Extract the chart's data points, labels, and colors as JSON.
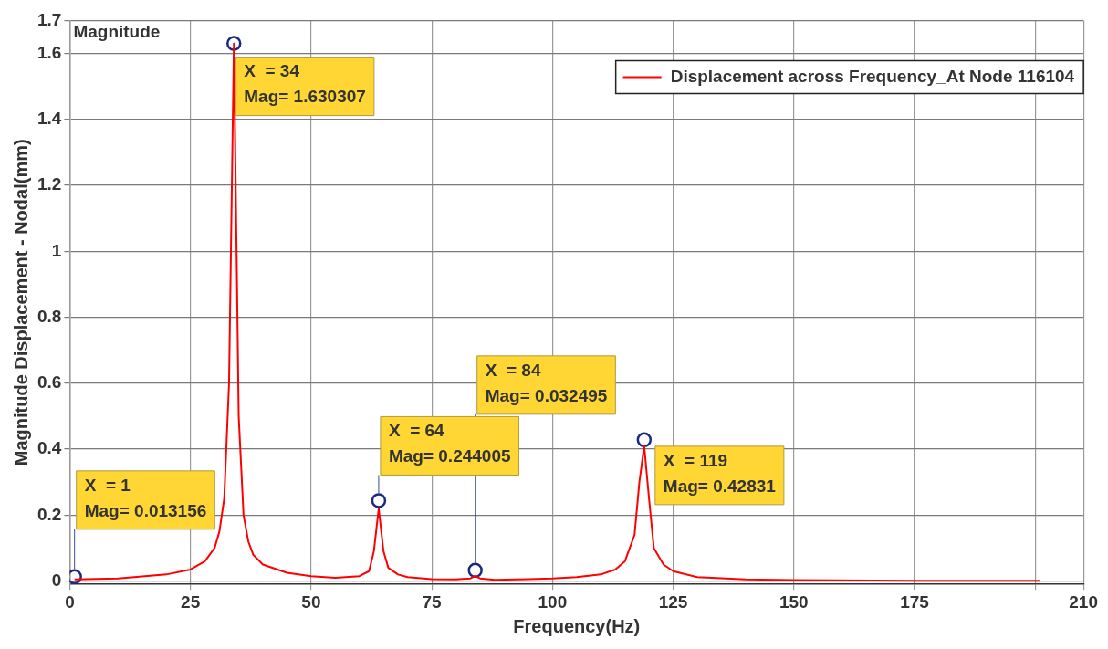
{
  "chart_data": {
    "type": "line",
    "title": "Magnitude",
    "xlabel": "Frequency(Hz)",
    "ylabel": "Magnitude Displacement - Nodal(mm)",
    "xlim": [
      0,
      210
    ],
    "xticks": [
      0,
      25,
      50,
      75,
      100,
      125,
      150,
      175,
      {
        "value": 200,
        "label": null
      },
      210
    ],
    "ylim": [
      -0.01,
      1.7
    ],
    "yticks": [
      0,
      0.2,
      0.4,
      0.6,
      0.8,
      1,
      1.2,
      1.4,
      1.6,
      1.7
    ],
    "grid": true,
    "legend": "top right",
    "series": [
      {
        "name": "Displacement across Frequency_At Node 116104",
        "type": "line",
        "color": "#ff0000",
        "marker": "none",
        "x": [
          1,
          10,
          20,
          25,
          28,
          30,
          31,
          32,
          33,
          34,
          35,
          36,
          37,
          38,
          40,
          45,
          50,
          55,
          60,
          62,
          63,
          64,
          65,
          66,
          68,
          70,
          75,
          80,
          83,
          84,
          85,
          88,
          95,
          100,
          105,
          110,
          113,
          115,
          117,
          118,
          119,
          120,
          121,
          123,
          125,
          130,
          140,
          150,
          175,
          201
        ],
        "values": [
          0.005,
          0.008,
          0.02,
          0.035,
          0.06,
          0.1,
          0.15,
          0.25,
          0.6,
          1.63,
          0.5,
          0.2,
          0.12,
          0.08,
          0.05,
          0.025,
          0.015,
          0.01,
          0.015,
          0.03,
          0.09,
          0.22,
          0.09,
          0.04,
          0.02,
          0.012,
          0.006,
          0.005,
          0.008,
          0.015,
          0.008,
          0.004,
          0.006,
          0.008,
          0.012,
          0.02,
          0.035,
          0.06,
          0.14,
          0.3,
          0.41,
          0.25,
          0.1,
          0.05,
          0.03,
          0.012,
          0.005,
          0.003,
          0.001,
          0.001
        ]
      },
      {
        "type": "scatter",
        "color": "#1a2a80",
        "marker": "circle",
        "x": [
          1,
          34,
          64,
          84,
          119
        ],
        "values": [
          0.013156,
          1.630307,
          0.244005,
          0.032495,
          0.42831
        ]
      }
    ],
    "annotations": [
      {
        "text": "X  = 1\nMag= 0.013156",
        "x": 1,
        "y": 0.013156
      },
      {
        "text": "X  = 34\nMag= 1.630307",
        "x": 34,
        "y": 1.630307
      },
      {
        "text": "X  = 64\nMag= 0.244005",
        "x": 64,
        "y": 0.244005
      },
      {
        "text": "X  = 84\nMag= 0.032495",
        "x": 84,
        "y": 0.032495
      },
      {
        "text": "X  = 119\nMag= 0.42831",
        "x": 119,
        "y": 0.42831
      }
    ]
  }
}
